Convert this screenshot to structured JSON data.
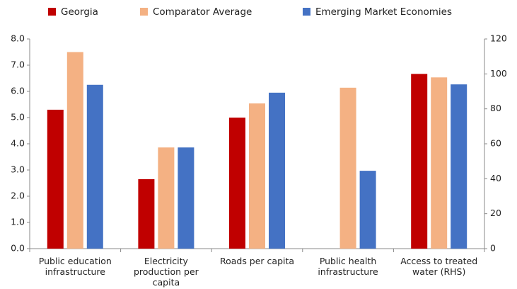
{
  "chart_data": [
    {
      "type": "bar",
      "categories": [
        "Public education infrastructure",
        "Electricity production per capita",
        "Roads per capita",
        "Public health infrastructure"
      ],
      "series": [
        {
          "name": "Georgia",
          "color": "#c00000",
          "values": [
            5.3,
            2.65,
            5.0,
            null
          ]
        },
        {
          "name": "Comparator Average",
          "color": "#f4b183",
          "values": [
            7.5,
            3.86,
            5.54,
            6.14
          ]
        },
        {
          "name": "Emerging Market Economies",
          "color": "#4472c4",
          "values": [
            6.25,
            3.86,
            5.95,
            2.97
          ]
        }
      ],
      "ylim": [
        0,
        8
      ],
      "yticks": [
        {
          "value": 0,
          "label": "0.0"
        },
        {
          "value": 1,
          "label": "1.0"
        },
        {
          "value": 2,
          "label": "2.0"
        },
        {
          "value": 3,
          "label": "3.0"
        },
        {
          "value": 4,
          "label": "4.0"
        },
        {
          "value": 5,
          "label": "5.0"
        },
        {
          "value": 6,
          "label": "6.0"
        },
        {
          "value": 7,
          "label": "7.0"
        },
        {
          "value": 8,
          "label": "8.0"
        }
      ],
      "legend": "top",
      "grid": false
    },
    {
      "type": "bar",
      "categories": [
        "Access to treated water (RHS)"
      ],
      "series": [
        {
          "color": "#c00000",
          "axis": "y2",
          "values": [
            100
          ]
        },
        {
          "color": "#f4b183",
          "axis": "y2",
          "values": [
            98
          ]
        },
        {
          "color": "#4472c4",
          "axis": "y2",
          "values": [
            94
          ]
        }
      ],
      "y2lim": [
        0,
        120
      ],
      "y2ticks": [
        0,
        20,
        40,
        60,
        80,
        100,
        120
      ]
    }
  ]
}
